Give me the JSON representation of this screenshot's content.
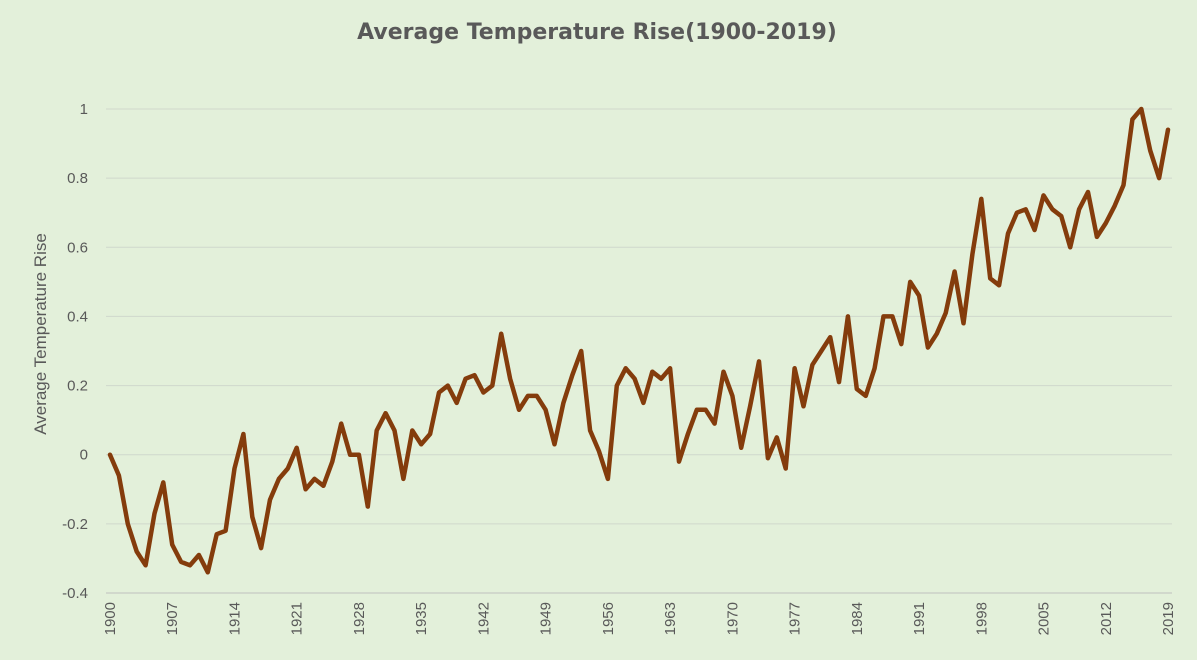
{
  "chart_data": {
    "type": "line",
    "title": "Average Temperature Rise(1900-2019)",
    "xlabel": "",
    "ylabel": "Average Temperature Rise",
    "ylim": [
      -0.4,
      1
    ],
    "yticks": [
      "1",
      "0.8",
      "0.6",
      "0.4",
      "0.2",
      "0",
      "-0.2",
      "-0.4"
    ],
    "xticks": [
      "1900",
      "1907",
      "1914",
      "1921",
      "1928",
      "1935",
      "1942",
      "1949",
      "1956",
      "1963",
      "1970",
      "1977",
      "1984",
      "1991",
      "1998",
      "2005",
      "2012",
      "2019"
    ],
    "grid": true,
    "legend": "none",
    "series_color": "#843c0c",
    "x": [
      1900,
      1901,
      1902,
      1903,
      1904,
      1905,
      1906,
      1907,
      1908,
      1909,
      1910,
      1911,
      1912,
      1913,
      1914,
      1915,
      1916,
      1917,
      1918,
      1919,
      1920,
      1921,
      1922,
      1923,
      1924,
      1925,
      1926,
      1927,
      1928,
      1929,
      1930,
      1931,
      1932,
      1933,
      1934,
      1935,
      1936,
      1937,
      1938,
      1939,
      1940,
      1941,
      1942,
      1943,
      1944,
      1945,
      1946,
      1947,
      1948,
      1949,
      1950,
      1951,
      1952,
      1953,
      1954,
      1955,
      1956,
      1957,
      1958,
      1959,
      1960,
      1961,
      1962,
      1963,
      1964,
      1965,
      1966,
      1967,
      1968,
      1969,
      1970,
      1971,
      1972,
      1973,
      1974,
      1975,
      1976,
      1977,
      1978,
      1979,
      1980,
      1981,
      1982,
      1983,
      1984,
      1985,
      1986,
      1987,
      1988,
      1989,
      1990,
      1991,
      1992,
      1993,
      1994,
      1995,
      1996,
      1997,
      1998,
      1999,
      2000,
      2001,
      2002,
      2003,
      2004,
      2005,
      2006,
      2007,
      2008,
      2009,
      2010,
      2011,
      2012,
      2013,
      2014,
      2015,
      2016,
      2017,
      2018,
      2019
    ],
    "series": [
      {
        "values": [
          0.0,
          -0.06,
          -0.2,
          -0.28,
          -0.32,
          -0.17,
          -0.08,
          -0.26,
          -0.31,
          -0.32,
          -0.29,
          -0.34,
          -0.23,
          -0.22,
          -0.04,
          0.06,
          -0.18,
          -0.27,
          -0.13,
          -0.07,
          -0.04,
          0.02,
          -0.1,
          -0.07,
          -0.09,
          -0.02,
          0.09,
          0.0,
          0.0,
          -0.15,
          0.07,
          0.12,
          0.07,
          -0.07,
          0.07,
          0.03,
          0.06,
          0.18,
          0.2,
          0.15,
          0.22,
          0.23,
          0.18,
          0.2,
          0.35,
          0.22,
          0.13,
          0.17,
          0.17,
          0.13,
          0.03,
          0.15,
          0.23,
          0.3,
          0.07,
          0.01,
          -0.07,
          0.2,
          0.25,
          0.22,
          0.15,
          0.24,
          0.22,
          0.25,
          -0.02,
          0.06,
          0.13,
          0.13,
          0.09,
          0.24,
          0.17,
          0.02,
          0.14,
          0.27,
          -0.01,
          0.05,
          -0.04,
          0.25,
          0.14,
          0.26,
          0.3,
          0.34,
          0.21,
          0.4,
          0.19,
          0.17,
          0.25,
          0.4,
          0.4,
          0.32,
          0.5,
          0.46,
          0.31,
          0.35,
          0.41,
          0.53,
          0.38,
          0.58,
          0.74,
          0.51,
          0.49,
          0.64,
          0.7,
          0.71,
          0.65,
          0.75,
          0.71,
          0.69,
          0.6,
          0.71,
          0.76,
          0.63,
          0.67,
          0.72,
          0.78,
          0.97,
          1.0,
          0.88,
          0.8,
          0.94
        ]
      }
    ]
  }
}
